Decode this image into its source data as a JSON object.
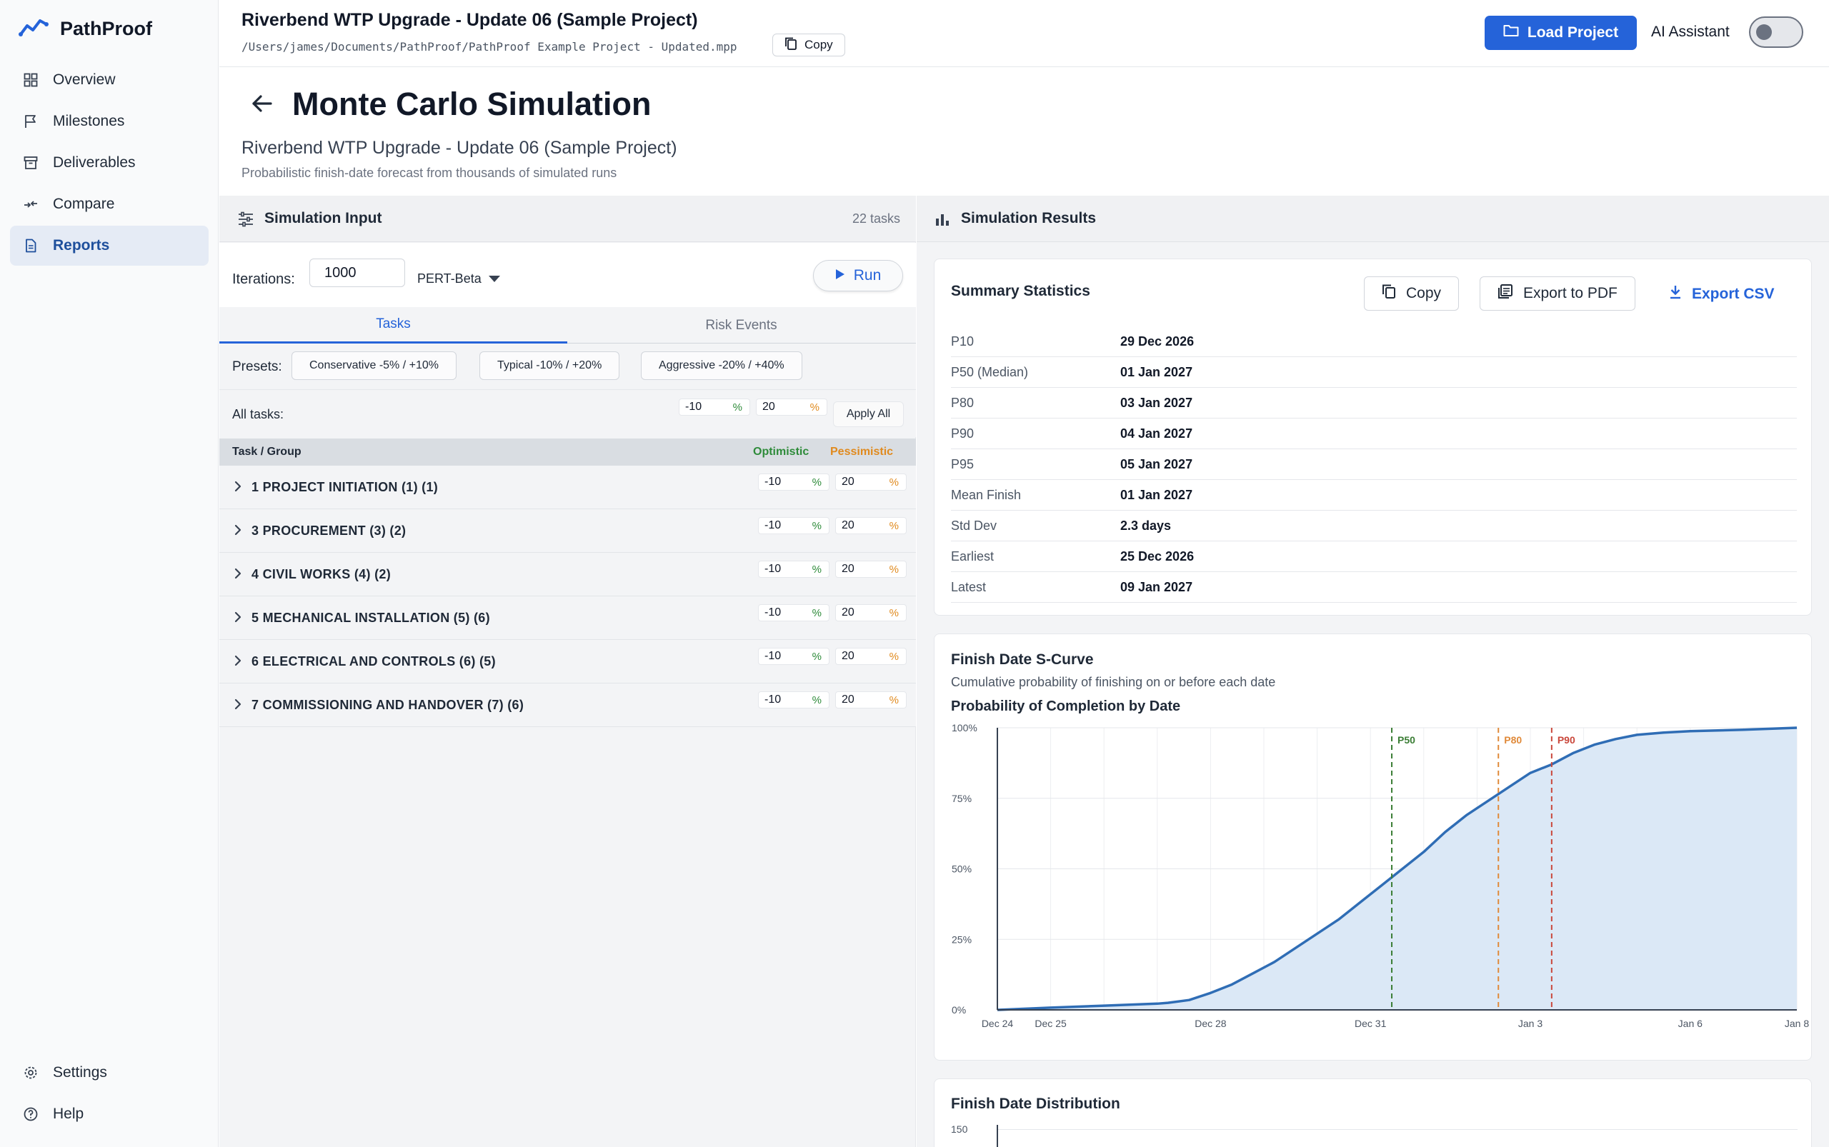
{
  "app": {
    "name": "PathProof"
  },
  "sidebar": {
    "items": [
      {
        "label": "Overview",
        "icon": "grid-icon"
      },
      {
        "label": "Milestones",
        "icon": "flag-icon"
      },
      {
        "label": "Deliverables",
        "icon": "archive-icon"
      },
      {
        "label": "Compare",
        "icon": "compare-icon"
      },
      {
        "label": "Reports",
        "icon": "document-icon",
        "active": true
      }
    ],
    "bottom": [
      {
        "label": "Settings",
        "icon": "gear-icon"
      },
      {
        "label": "Help",
        "icon": "help-icon"
      }
    ]
  },
  "header": {
    "project_title": "Riverbend WTP Upgrade - Update 06 (Sample Project)",
    "project_path": "/Users/james/Documents/PathProof/PathProof Example Project - Updated.mpp",
    "copy_label": "Copy",
    "load_label": "Load Project",
    "ai_label": "AI Assistant",
    "ai_enabled": false
  },
  "page": {
    "title": "Monte Carlo Simulation",
    "subtitle": "Riverbend WTP Upgrade - Update 06 (Sample Project)",
    "description": "Probabilistic finish-date forecast from thousands of simulated runs"
  },
  "input": {
    "title": "Simulation Input",
    "task_count": "22 tasks",
    "iterations_label": "Iterations:",
    "iterations": "1000",
    "distribution": "PERT-Beta",
    "run_label": "Run",
    "tabs": [
      "Tasks",
      "Risk Events"
    ],
    "presets_label": "Presets:",
    "presets": [
      "Conservative -5% / +10%",
      "Typical -10% / +20%",
      "Aggressive -20% / +40%"
    ],
    "all_tasks_label": "All tasks:",
    "all_opt": "-10",
    "all_pes": "20",
    "pct": "%",
    "apply_label": "Apply All",
    "col_task": "Task / Group",
    "col_opt": "Optimistic",
    "col_pes": "Pessimistic",
    "groups": [
      {
        "name": "1 PROJECT INITIATION (1) (1)",
        "opt": "-10",
        "pes": "20"
      },
      {
        "name": "3 PROCUREMENT (3) (2)",
        "opt": "-10",
        "pes": "20"
      },
      {
        "name": "4 CIVIL WORKS (4) (2)",
        "opt": "-10",
        "pes": "20"
      },
      {
        "name": "5 MECHANICAL INSTALLATION (5) (6)",
        "opt": "-10",
        "pes": "20"
      },
      {
        "name": "6 ELECTRICAL AND CONTROLS (6) (5)",
        "opt": "-10",
        "pes": "20"
      },
      {
        "name": "7 COMMISSIONING AND HANDOVER (7) (6)",
        "opt": "-10",
        "pes": "20"
      }
    ]
  },
  "results": {
    "title": "Simulation Results",
    "summary_title": "Summary Statistics",
    "copy_label": "Copy",
    "pdf_label": "Export to PDF",
    "csv_label": "Export CSV",
    "stats": [
      {
        "k": "P10",
        "v": "29 Dec 2026"
      },
      {
        "k": "P50 (Median)",
        "v": "01 Jan 2027"
      },
      {
        "k": "P80",
        "v": "03 Jan 2027"
      },
      {
        "k": "P90",
        "v": "04 Jan 2027"
      },
      {
        "k": "P95",
        "v": "05 Jan 2027"
      },
      {
        "k": "Mean Finish",
        "v": "01 Jan 2027"
      },
      {
        "k": "Std Dev",
        "v": "2.3 days"
      },
      {
        "k": "Earliest",
        "v": "25 Dec 2026"
      },
      {
        "k": "Latest",
        "v": "09 Jan 2027"
      }
    ],
    "scurve_title": "Finish Date S-Curve",
    "scurve_sub": "Cumulative probability of finishing on or before each date",
    "dist_title": "Finish Date Distribution",
    "dist_y_top": "150"
  },
  "chart_data": {
    "type": "line",
    "title": "Probability of Completion by Date",
    "x_unit": "day offset from Dec 24",
    "x_ticks": [
      {
        "x": 0,
        "label": "Dec 24"
      },
      {
        "x": 1,
        "label": "Dec 25"
      },
      {
        "x": 4,
        "label": "Dec 28"
      },
      {
        "x": 7,
        "label": "Dec 31"
      },
      {
        "x": 10,
        "label": "Jan 3"
      },
      {
        "x": 13,
        "label": "Jan 6"
      },
      {
        "x": 15,
        "label": "Jan 8"
      }
    ],
    "xlim": [
      0,
      15
    ],
    "y_ticks": [
      {
        "y": 0,
        "label": "0%"
      },
      {
        "y": 25,
        "label": "25%"
      },
      {
        "y": 50,
        "label": "50%"
      },
      {
        "y": 75,
        "label": "75%"
      },
      {
        "y": 100,
        "label": "100%"
      }
    ],
    "ylim": [
      0,
      100
    ],
    "grid": true,
    "series": [
      {
        "x": [
          0,
          1,
          2,
          3,
          3.2,
          3.6,
          4.0,
          4.4,
          4.8,
          5.2,
          5.6,
          6.0,
          6.4,
          6.8,
          7.2,
          7.6,
          8.0,
          8.4,
          8.8,
          9.2,
          9.6,
          10.0,
          10.4,
          10.8,
          11.2,
          11.6,
          12.0,
          12.5,
          13.0,
          14.0,
          15.0
        ],
        "y": [
          0,
          0.8,
          1.5,
          2.2,
          2.5,
          3.5,
          6,
          9,
          13,
          17,
          22,
          27,
          32,
          38,
          44,
          50,
          56,
          63,
          69,
          74,
          79,
          84,
          87,
          91,
          94,
          96,
          97.5,
          98.3,
          98.8,
          99.3,
          100
        ]
      }
    ],
    "markers": [
      {
        "label": "P50",
        "x": 7.4,
        "color": "#3a7d34"
      },
      {
        "label": "P80",
        "x": 9.4,
        "color": "#e08a3a"
      },
      {
        "label": "P90",
        "x": 10.4,
        "color": "#c9473b"
      }
    ],
    "line_color": "#2f6db5",
    "fill_color": "#dbe8f6"
  }
}
